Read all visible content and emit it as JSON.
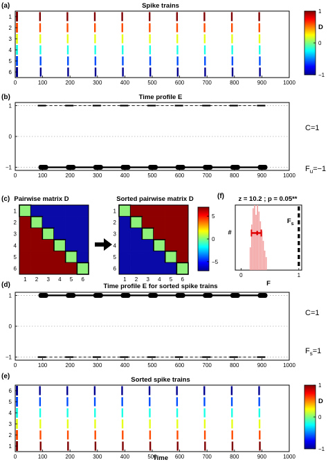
{
  "figure": {
    "panel_labels": [
      "(a)",
      "(b)",
      "(c)",
      "(f)",
      "(d)",
      "(e)"
    ],
    "colorbar_label": "D",
    "stat_text": "z = 10.2  ;  p = 0.05**",
    "fs_label": "F",
    "fs_sub": "s",
    "annotations_b": {
      "c": "C=1",
      "f_base": "F",
      "f_sub": "u",
      "f_val": "=−1"
    },
    "annotations_d": {
      "c": "C=1",
      "f_base": "F",
      "f_sub": "s",
      "f_val": "=1"
    }
  },
  "chart_data": [
    {
      "id": "a",
      "type": "raster",
      "title": "Spike trains",
      "xlim": [
        0,
        1000
      ],
      "xticks": [
        0,
        100,
        200,
        300,
        400,
        500,
        600,
        700,
        800,
        900,
        1000
      ],
      "yticks": [
        1,
        2,
        3,
        4,
        5,
        6
      ],
      "y_order": "top-down",
      "spike_times": [
        90,
        190,
        290,
        390,
        490,
        590,
        690,
        790,
        890
      ],
      "spike_offsets": [
        0.4,
        0.85,
        1.45,
        2.05,
        2.6,
        3.0
      ],
      "train_color_values": [
        1,
        0.6,
        0.2,
        -0.2,
        -0.6,
        -1
      ],
      "colorbar": {
        "range": [
          -1,
          1
        ],
        "ticks": [
          1,
          0,
          -1
        ]
      }
    },
    {
      "id": "b",
      "type": "line",
      "title": "Time profile E",
      "xlim": [
        0,
        1000
      ],
      "ylim": [
        -1.1,
        1.1
      ],
      "xticks": [
        0,
        100,
        200,
        300,
        400,
        500,
        600,
        700,
        800,
        900,
        1000
      ],
      "yticks": [
        1,
        0,
        -1
      ],
      "ytick_labels": [
        "1",
        "0",
        "−1"
      ],
      "solid_level": -1,
      "dashed_level": 1,
      "from": 90,
      "to": 905,
      "markers": [
        90,
        190,
        290,
        390,
        490,
        590,
        690,
        790,
        890
      ]
    },
    {
      "id": "c1",
      "type": "heatmap",
      "title": "Pairwise matrix D",
      "n": 6,
      "ticks": [
        1,
        2,
        3,
        4,
        5,
        6
      ],
      "pattern": "upper-blue"
    },
    {
      "id": "c2",
      "type": "heatmap",
      "title": "Sorted pairwise matrix D",
      "n": 6,
      "ticks": [
        1,
        2,
        3,
        4,
        5,
        6
      ],
      "pattern": "upper-red",
      "colorbar": {
        "range": [
          -7,
          7
        ],
        "ticks": [
          5,
          0,
          -5
        ]
      }
    },
    {
      "id": "f",
      "type": "histogram",
      "title": "z = 10.2  ;  p = 0.05**",
      "xlabel": "F",
      "ylabel": "#",
      "xlim": [
        -0.1,
        1.05
      ],
      "xticks": [
        0,
        1
      ],
      "surrogate_range": [
        0.15,
        0.45
      ],
      "mean": 0.28,
      "std_range": [
        0.18,
        0.35
      ],
      "Fs": 1
    },
    {
      "id": "d",
      "type": "line",
      "title": "Time profile E for sorted spike trains",
      "xlim": [
        0,
        1000
      ],
      "ylim": [
        -1.1,
        1.1
      ],
      "xticks": [
        0,
        100,
        200,
        300,
        400,
        500,
        600,
        700,
        800,
        900,
        1000
      ],
      "yticks": [
        1,
        0,
        -1
      ],
      "ytick_labels": [
        "1",
        "0",
        "−1"
      ],
      "solid_level": 1,
      "dashed_level": -1,
      "from": 90,
      "to": 905,
      "markers": [
        90,
        190,
        290,
        390,
        490,
        590,
        690,
        790,
        890
      ]
    },
    {
      "id": "e",
      "type": "raster",
      "title": "Sorted spike trains",
      "xlabel": "Time",
      "xlim": [
        0,
        1000
      ],
      "xticks": [
        0,
        100,
        200,
        300,
        400,
        500,
        600,
        700,
        800,
        900,
        1000
      ],
      "yticks": [
        6,
        5,
        4,
        3,
        2,
        1
      ],
      "y_order": "top-down",
      "spike_times": [
        90,
        190,
        290,
        390,
        490,
        590,
        690,
        790,
        890
      ],
      "spike_offsets": [
        0.05,
        0.55,
        1.05,
        1.6,
        2.15,
        2.75
      ],
      "train_color_values": [
        -1,
        -0.6,
        -0.2,
        0.2,
        0.6,
        1
      ],
      "colorbar": {
        "range": [
          -1,
          1
        ],
        "ticks": [
          1,
          0,
          -1
        ]
      }
    }
  ]
}
